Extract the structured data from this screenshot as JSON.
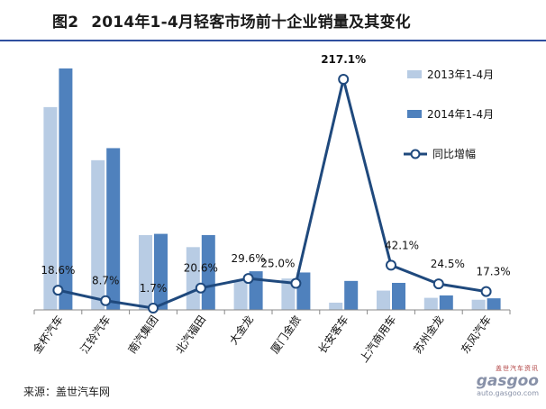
{
  "title": {
    "figure": "图2",
    "text": "2014年1-4月轻客市场前十企业销量及其变化"
  },
  "source": "来源：盖世汽车网",
  "watermark": {
    "top": "盖世汽车资讯",
    "logo": "gasgoo",
    "url": "auto.gasgoo.com"
  },
  "chart_data": {
    "type": "bar",
    "categories": [
      "金杯汽车",
      "江铃汽车",
      "南汽集团",
      "北汽福田",
      "大金龙",
      "厦门金旅",
      "长安客车",
      "上汽商用车",
      "苏州金龙",
      "东风汽车"
    ],
    "series": [
      {
        "name": "2013年1-4月",
        "type": "bar",
        "color": "#b8cce4",
        "values": [
          8.4,
          6.2,
          3.1,
          2.6,
          1.2,
          1.3,
          0.3,
          0.8,
          0.5,
          0.42
        ]
      },
      {
        "name": "2014年1-4月",
        "type": "bar",
        "color": "#4f81bd",
        "values": [
          10.0,
          6.7,
          3.15,
          3.1,
          1.6,
          1.55,
          1.2,
          1.12,
          0.6,
          0.48
        ]
      },
      {
        "name": "同比增幅",
        "type": "line",
        "color": "#1f497d",
        "values": [
          18.6,
          8.7,
          1.7,
          20.6,
          29.6,
          25.0,
          217.1,
          42.1,
          24.5,
          17.3
        ],
        "labels": [
          "18.6%",
          "8.7%",
          "1.7%",
          "20.6%",
          "29.6%",
          "25.0%",
          "217.1%",
          "42.1%",
          "24.5%",
          "17.3%"
        ]
      }
    ],
    "growth_range": [
      -10,
      250
    ],
    "legend": "right",
    "grid": false
  }
}
